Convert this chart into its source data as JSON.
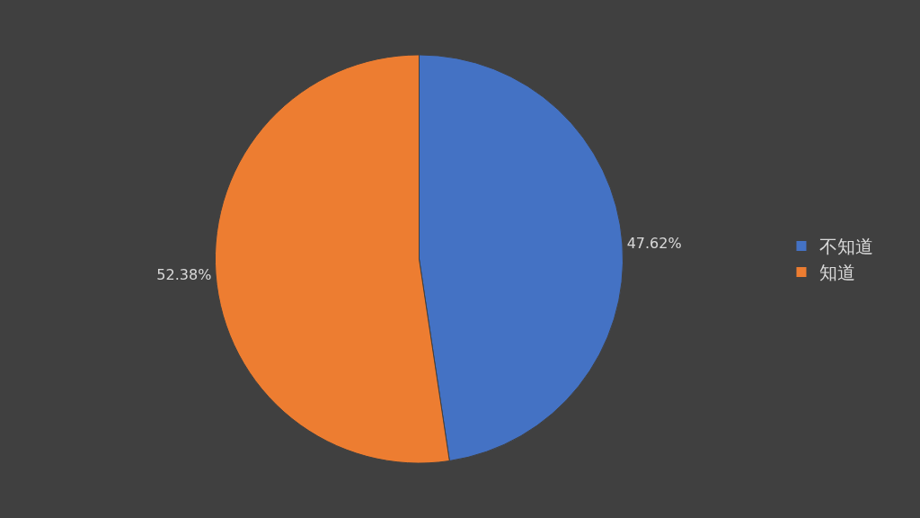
{
  "chart_data": {
    "type": "pie",
    "categories": [
      "不知道",
      "知道"
    ],
    "values": [
      47.62,
      52.38
    ],
    "colors": [
      "#4472c4",
      "#ed7d31"
    ],
    "value_labels": [
      "47.62%",
      "52.38%"
    ],
    "legend": "right"
  }
}
